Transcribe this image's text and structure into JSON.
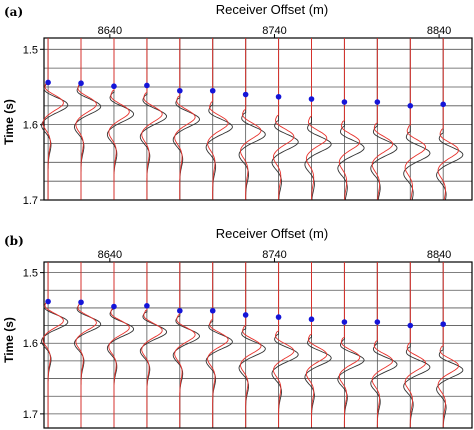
{
  "chart_data": [
    {
      "type": "line",
      "panel_label": "(a)",
      "title": "Receiver Offset (m)",
      "ylabel": "Time (s)",
      "xlim": [
        8600,
        8860
      ],
      "ylim": [
        1.7,
        1.485
      ],
      "x_ticks": [
        8640,
        8740,
        8840
      ],
      "y_ticks": [
        1.5,
        1.6,
        1.7
      ],
      "grid": true,
      "trace_offsets": [
        8602.5,
        8622.5,
        8642.5,
        8662.5,
        8682.5,
        8702.5,
        8722.5,
        8742.5,
        8762.5,
        8782.5,
        8802.5,
        8822.5,
        8842.5
      ],
      "picks": {
        "color": "#1515d8",
        "x": [
          8602.5,
          8622.5,
          8642.5,
          8662.5,
          8682.5,
          8702.5,
          8722.5,
          8742.5,
          8762.5,
          8782.5,
          8802.5,
          8822.5,
          8842.5
        ],
        "y": [
          1.544,
          1.545,
          1.549,
          1.548,
          1.555,
          1.555,
          1.56,
          1.563,
          1.566,
          1.57,
          1.57,
          1.575,
          1.573
        ]
      },
      "series": [
        {
          "color": "#333333",
          "onset": [
            1.556,
            1.558,
            1.568,
            1.571,
            1.575,
            1.585,
            1.595,
            1.605,
            1.608,
            1.613,
            1.613,
            1.62,
            1.622
          ],
          "amplitude": 0.6
        },
        {
          "color": "#e8322c",
          "onset": [
            1.553,
            1.555,
            1.565,
            1.568,
            1.572,
            1.58,
            1.59,
            1.598,
            1.6,
            1.605,
            1.608,
            1.612,
            1.616
          ],
          "amplitude": 0.55
        }
      ]
    },
    {
      "type": "line",
      "panel_label": "(b)",
      "title": "Receiver Offset (m)",
      "ylabel": "Time (s)",
      "xlim": [
        8600,
        8860
      ],
      "ylim": [
        1.72,
        1.485
      ],
      "x_ticks": [
        8640,
        8740,
        8840
      ],
      "y_ticks": [
        1.5,
        1.6,
        1.7
      ],
      "grid": true,
      "trace_offsets": [
        8602.5,
        8622.5,
        8642.5,
        8662.5,
        8682.5,
        8702.5,
        8722.5,
        8742.5,
        8762.5,
        8782.5,
        8802.5,
        8822.5,
        8842.5
      ],
      "picks": {
        "color": "#1515d8",
        "x": [
          8602.5,
          8622.5,
          8642.5,
          8662.5,
          8682.5,
          8702.5,
          8722.5,
          8742.5,
          8762.5,
          8782.5,
          8802.5,
          8822.5,
          8842.5
        ],
        "y": [
          1.541,
          1.542,
          1.548,
          1.547,
          1.554,
          1.554,
          1.56,
          1.563,
          1.566,
          1.57,
          1.57,
          1.575,
          1.573
        ]
      },
      "series": [
        {
          "color": "#333333",
          "onset": [
            1.552,
            1.555,
            1.562,
            1.566,
            1.572,
            1.58,
            1.59,
            1.598,
            1.603,
            1.606,
            1.612,
            1.616,
            1.62
          ],
          "amplitude": 0.6
        },
        {
          "color": "#e8322c",
          "onset": [
            1.55,
            1.553,
            1.56,
            1.564,
            1.57,
            1.577,
            1.586,
            1.593,
            1.598,
            1.602,
            1.607,
            1.61,
            1.614
          ],
          "amplitude": 0.55
        }
      ]
    }
  ]
}
